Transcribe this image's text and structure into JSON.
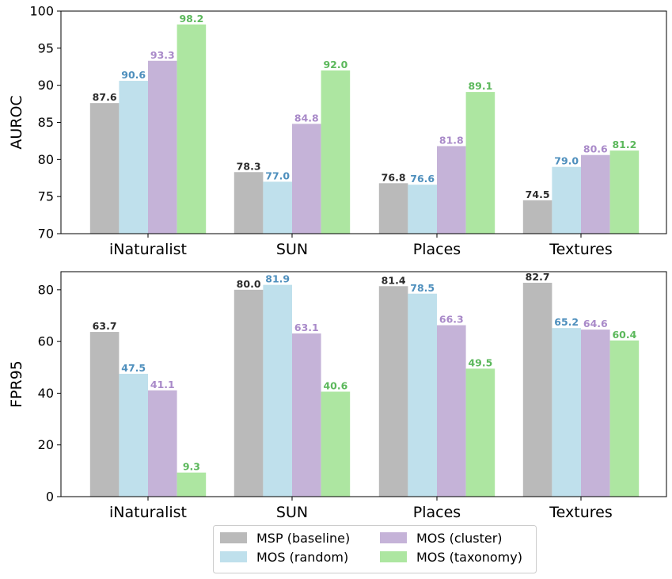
{
  "chart_data": [
    {
      "type": "bar",
      "ylabel": "AUROC",
      "ylim": [
        70,
        100
      ],
      "yticks": [
        70,
        75,
        80,
        85,
        90,
        95,
        100
      ],
      "categories": [
        "iNaturalist",
        "SUN",
        "Places",
        "Textures"
      ],
      "series": [
        {
          "name": "MSP (baseline)",
          "values": [
            87.6,
            78.3,
            76.8,
            74.5
          ],
          "labels": [
            "87.6",
            "78.3",
            "76.8",
            "74.5"
          ]
        },
        {
          "name": "MOS (random)",
          "values": [
            90.6,
            77.0,
            76.6,
            79.0
          ],
          "labels": [
            "90.6",
            "77.0",
            "76.6",
            "79.0"
          ]
        },
        {
          "name": "MOS (cluster)",
          "values": [
            93.3,
            84.8,
            81.8,
            80.6
          ],
          "labels": [
            "93.3",
            "84.8",
            "81.8",
            "80.6"
          ]
        },
        {
          "name": "MOS (taxonomy)",
          "values": [
            98.2,
            92.0,
            89.1,
            81.2
          ],
          "labels": [
            "98.2",
            "92.0",
            "89.1",
            "81.2"
          ]
        }
      ]
    },
    {
      "type": "bar",
      "ylabel": "FPR95",
      "ylim": [
        0,
        87
      ],
      "yticks": [
        0,
        20,
        40,
        60,
        80
      ],
      "categories": [
        "iNaturalist",
        "SUN",
        "Places",
        "Textures"
      ],
      "series": [
        {
          "name": "MSP (baseline)",
          "values": [
            63.7,
            80.0,
            81.4,
            82.7
          ],
          "labels": [
            "63.7",
            "80.0",
            "81.4",
            "82.7"
          ]
        },
        {
          "name": "MOS (random)",
          "values": [
            47.5,
            81.9,
            78.5,
            65.2
          ],
          "labels": [
            "47.5",
            "81.9",
            "78.5",
            "65.2"
          ]
        },
        {
          "name": "MOS (cluster)",
          "values": [
            41.1,
            63.1,
            66.3,
            64.6
          ],
          "labels": [
            "41.1",
            "63.1",
            "66.3",
            "64.6"
          ]
        },
        {
          "name": "MOS (taxonomy)",
          "values": [
            9.3,
            40.6,
            49.5,
            60.4
          ],
          "labels": [
            "9.3",
            "40.6",
            "49.5",
            "60.4"
          ]
        }
      ]
    }
  ],
  "legend": {
    "items": [
      "MSP (baseline)",
      "MOS (random)",
      "MOS (cluster)",
      "MOS (taxonomy)"
    ],
    "placement": "bottom-center"
  },
  "colors": {
    "bar_fills": [
      "#bababa",
      "#bfe0ec",
      "#c5b3d8",
      "#ade6a1"
    ],
    "label_colors": [
      "#2b2b2b",
      "#4e8fbd",
      "#a98ac9",
      "#5cb85c"
    ]
  }
}
